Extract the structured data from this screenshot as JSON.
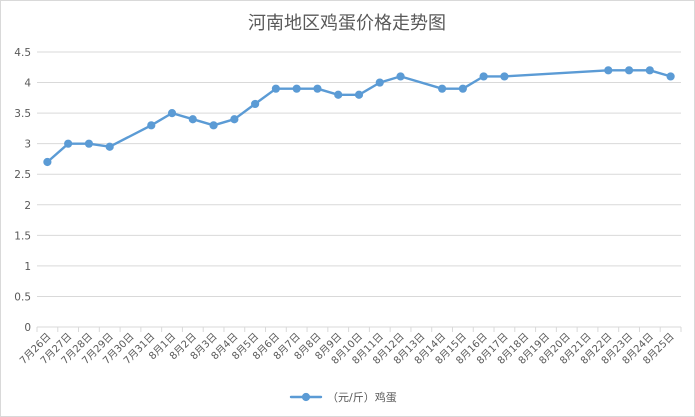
{
  "chart_data": {
    "type": "line",
    "title": "河南地区鸡蛋价格走势图",
    "xlabel": "",
    "ylabel": "",
    "ylim": [
      0,
      4.5
    ],
    "yticks": [
      0,
      0.5,
      1,
      1.5,
      2,
      2.5,
      3,
      3.5,
      4,
      4.5
    ],
    "ytick_labels": [
      "0",
      "0.5",
      "1",
      "1.5",
      "2",
      "2.5",
      "3",
      "3.5",
      "4",
      "4.5"
    ],
    "grid": true,
    "legend_position": "bottom",
    "categories": [
      "7月26日",
      "7月27日",
      "7月28日",
      "7月29日",
      "7月30日",
      "7月31日",
      "8月1日",
      "8月2日",
      "8月3日",
      "8月4日",
      "8月5日",
      "8月6日",
      "8月7日",
      "8月8日",
      "8月9日",
      "8月10日",
      "8月11日",
      "8月12日",
      "8月13日",
      "8月14日",
      "8月15日",
      "8月16日",
      "8月17日",
      "8月18日",
      "8月19日",
      "8月20日",
      "8月21日",
      "8月22日",
      "8月23日",
      "8月24日",
      "8月25日"
    ],
    "series": [
      {
        "name": "（元/斤）鸡蛋",
        "color": "#5b9bd5",
        "values": [
          2.7,
          3.0,
          3.0,
          2.95,
          null,
          3.3,
          3.5,
          3.4,
          3.3,
          3.4,
          3.65,
          3.9,
          3.9,
          3.9,
          3.8,
          3.8,
          4.0,
          4.1,
          null,
          3.9,
          3.9,
          4.1,
          4.1,
          null,
          null,
          null,
          null,
          4.2,
          4.2,
          4.2,
          4.1
        ]
      }
    ]
  }
}
